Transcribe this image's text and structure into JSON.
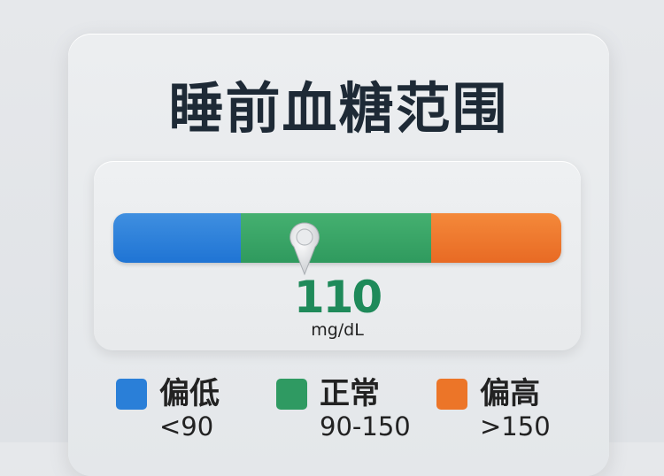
{
  "title": "睡前血糖范围",
  "reading": {
    "value": "110",
    "unit": "mg/dL",
    "value_color": "#1f8a5a"
  },
  "gauge": {
    "thresholds": [
      90,
      150
    ]
  },
  "legend": [
    {
      "label": "偏低",
      "range": "<90",
      "color": "#2a7fd8"
    },
    {
      "label": "正常",
      "range": "90-150",
      "color": "#2f9a62"
    },
    {
      "label": "偏高",
      "range": ">150",
      "color": "#ec7528"
    }
  ]
}
